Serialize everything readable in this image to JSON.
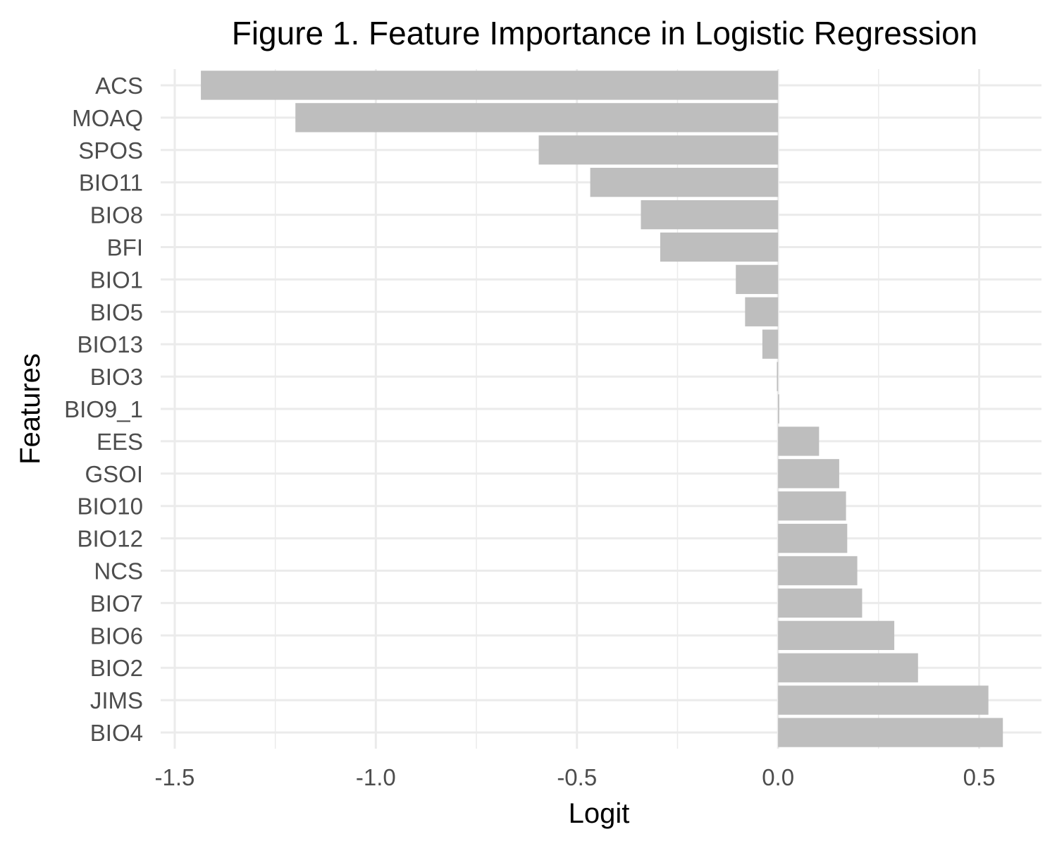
{
  "chart_data": {
    "type": "bar",
    "orientation": "horizontal",
    "title": "Figure 1. Feature Importance in Logistic Regression",
    "xlabel": "Logit",
    "ylabel": "Features",
    "xlim": [
      -1.535,
      0.655
    ],
    "x_ticks": [
      -1.5,
      -1.0,
      -0.5,
      0.0,
      0.5
    ],
    "x_tick_labels": [
      "-1.5",
      "-1.0",
      "-0.5",
      "0.0",
      "0.5"
    ],
    "grid": true,
    "bar_color": "#bebebe",
    "categories": [
      "ACS",
      "MOAQ",
      "SPOS",
      "BIO11",
      "BIO8",
      "BFI",
      "BIO1",
      "BIO5",
      "BIO13",
      "BIO3",
      "BIO9_1",
      "EES",
      "GSOI",
      "BIO10",
      "BIO12",
      "NCS",
      "BIO7",
      "BIO6",
      "BIO2",
      "JIMS",
      "BIO4"
    ],
    "values": [
      -1.435,
      -1.2,
      -0.595,
      -0.467,
      -0.341,
      -0.293,
      -0.105,
      -0.082,
      -0.039,
      -0.003,
      0.003,
      0.102,
      0.152,
      0.169,
      0.172,
      0.197,
      0.209,
      0.289,
      0.348,
      0.523,
      0.559
    ]
  }
}
